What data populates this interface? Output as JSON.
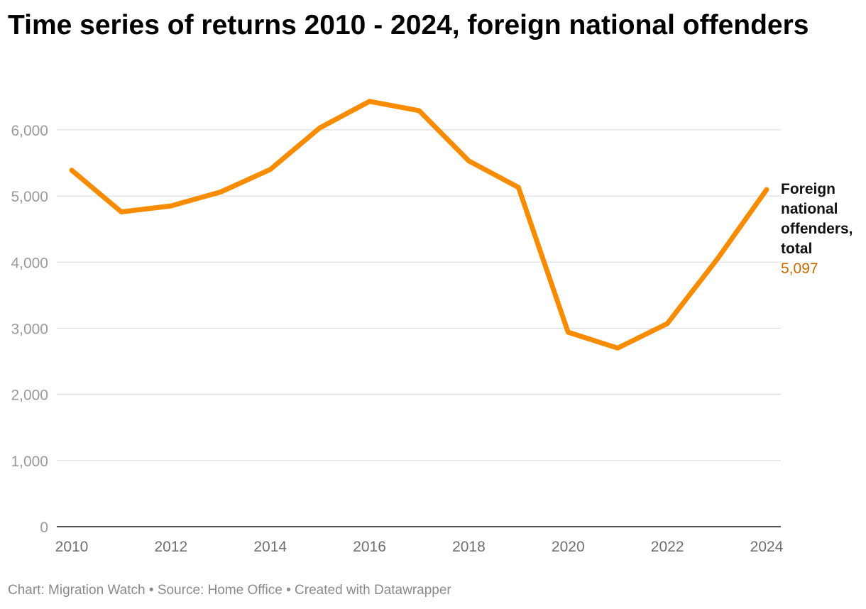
{
  "title": "Time series of returns 2010 - 2024, foreign national offenders",
  "footer": {
    "chart_by": "Chart: Migration Watch",
    "separator": " • ",
    "source": "Source: Home Office",
    "created_with": "Created with Datawrapper"
  },
  "colors": {
    "series": "#f78c00",
    "end_value": "#c96a00"
  },
  "chart_data": {
    "type": "line",
    "title": "Time series of returns 2010 - 2024, foreign national offenders",
    "xlabel": "",
    "ylabel": "",
    "x": [
      2010,
      2011,
      2012,
      2013,
      2014,
      2015,
      2016,
      2017,
      2018,
      2019,
      2020,
      2021,
      2022,
      2023,
      2024
    ],
    "x_ticks": [
      "2010",
      "2012",
      "2014",
      "2016",
      "2018",
      "2020",
      "2022",
      "2024"
    ],
    "y_ticks": [
      0,
      1000,
      2000,
      3000,
      4000,
      5000,
      6000
    ],
    "y_tick_labels": [
      "0",
      "1,000",
      "2,000",
      "3,000",
      "4,000",
      "5,000",
      "6,000"
    ],
    "xlim": [
      2010,
      2024
    ],
    "ylim": [
      0,
      6600
    ],
    "grid": true,
    "legend": "none",
    "series": [
      {
        "name": "Foreign national offenders, total",
        "values": [
          5390,
          4760,
          4850,
          5060,
          5400,
          6030,
          6430,
          6290,
          5530,
          5130,
          2940,
          2700,
          3070,
          4040,
          5097
        ],
        "end_label_lines": [
          "Foreign",
          "national",
          "offenders,",
          "total"
        ],
        "end_value_label": "5,097"
      }
    ]
  }
}
